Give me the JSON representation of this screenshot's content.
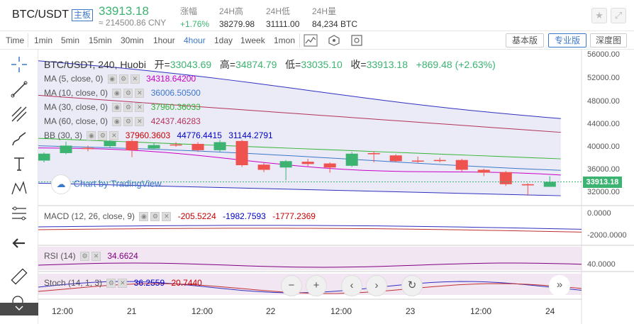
{
  "header": {
    "pair": "BTC/USDT",
    "board_tag": "主板",
    "price": "33913.18",
    "price_cny": "≈ 214500.86 CNY",
    "change_label": "涨幅",
    "change_value": "+1.76%",
    "high_label": "24H高",
    "high_value": "38279.98",
    "low_label": "24H低",
    "low_value": "31111.00",
    "volume_label": "24H量",
    "volume_value": "84,234 BTC"
  },
  "toolbar": {
    "timeframes": [
      "Time",
      "1min",
      "5min",
      "15min",
      "30min",
      "1hour",
      "4hour",
      "1day",
      "1week",
      "1mon"
    ],
    "active_timeframe": "4hour",
    "view_basic": "基本版",
    "view_pro": "专业版",
    "view_depth": "深度图"
  },
  "chart": {
    "symbol_line": "BTC/USDT, 240, Huobi",
    "open_label": "开=",
    "open": "33043.69",
    "high_label": "高=",
    "high": "34874.79",
    "low_label": "低=",
    "low": "33035.10",
    "close_label": "收=",
    "close": "33913.18",
    "change": "+869.48 (+2.63%)",
    "indicators": [
      {
        "label": "MA (5, close, 0)",
        "value": "34318.64200",
        "color": "#c800c8"
      },
      {
        "label": "MA (10, close, 0)",
        "value": "36006.50500",
        "color": "#3c78c8"
      },
      {
        "label": "MA (30, close, 0)",
        "value": "37960.36033",
        "color": "#32b432"
      },
      {
        "label": "MA (60, close, 0)",
        "value": "42437.46283",
        "color": "#b4325a"
      }
    ],
    "bb": {
      "label": "BB (30, 3)",
      "v1": "37960.3603",
      "v2": "44776.4415",
      "v3": "31144.2791"
    },
    "watermark": "Chart by TradingView",
    "price_axis": [
      "56000.00",
      "52000.00",
      "48000.00",
      "44000.00",
      "40000.00",
      "36000.00",
      "32000.00"
    ],
    "last_price": "33913.18",
    "macd": {
      "label": "MACD (12, 26, close, 9)",
      "v1": "-205.5224",
      "v2": "-1982.7593",
      "v3": "-1777.2369",
      "axis": [
        "0.0000",
        "-2000.0000"
      ]
    },
    "rsi": {
      "label": "RSI (14)",
      "value": "34.6624",
      "axis": "40.0000"
    },
    "stoch": {
      "label": "Stoch (14, 1, 3)",
      "v1": "36.2559",
      "v2": "20.7440"
    },
    "time_axis": [
      "12:00",
      "21",
      "12:00",
      "22",
      "12:00",
      "23",
      "12:00",
      "24"
    ]
  },
  "chart_data": {
    "type": "candlestick",
    "interval": "4hour",
    "candles": [
      {
        "open": 37600,
        "close": 38800,
        "high": 39000,
        "low": 37300
      },
      {
        "open": 38900,
        "close": 40200,
        "high": 40900,
        "low": 38700
      },
      {
        "open": 39800,
        "close": 39600,
        "high": 40200,
        "low": 39200
      },
      {
        "open": 40100,
        "close": 41000,
        "high": 41400,
        "low": 39800
      },
      {
        "open": 41000,
        "close": 39400,
        "high": 41300,
        "low": 38200
      },
      {
        "open": 39700,
        "close": 40300,
        "high": 40700,
        "low": 39500
      },
      {
        "open": 40400,
        "close": 40300,
        "high": 40800,
        "low": 40000
      },
      {
        "open": 40500,
        "close": 39400,
        "high": 40800,
        "low": 39100
      },
      {
        "open": 39400,
        "close": 40800,
        "high": 41200,
        "low": 39100
      },
      {
        "open": 41000,
        "close": 36800,
        "high": 41200,
        "low": 36500
      },
      {
        "open": 36900,
        "close": 36000,
        "high": 37300,
        "low": 35600
      },
      {
        "open": 36400,
        "close": 37500,
        "high": 37700,
        "low": 34200
      },
      {
        "open": 37400,
        "close": 37000,
        "high": 37900,
        "low": 36600
      },
      {
        "open": 37100,
        "close": 36400,
        "high": 37300,
        "low": 35500
      },
      {
        "open": 36700,
        "close": 38800,
        "high": 39100,
        "low": 36500
      },
      {
        "open": 38900,
        "close": 38700,
        "high": 39200,
        "low": 37300
      },
      {
        "open": 38500,
        "close": 37500,
        "high": 38700,
        "low": 37300
      },
      {
        "open": 37600,
        "close": 37500,
        "high": 38300,
        "low": 37200
      },
      {
        "open": 37700,
        "close": 37600,
        "high": 38100,
        "low": 37300
      },
      {
        "open": 37700,
        "close": 36000,
        "high": 37900,
        "low": 35700
      },
      {
        "open": 36000,
        "close": 35500,
        "high": 36200,
        "low": 34900
      },
      {
        "open": 35600,
        "close": 33500,
        "high": 35800,
        "low": 33200
      },
      {
        "open": 33500,
        "close": 33300,
        "high": 33700,
        "low": 31500
      },
      {
        "open": 33043.69,
        "close": 33913.18,
        "high": 34874.79,
        "low": 33035.1
      }
    ],
    "y_axis_ticks": [
      56000,
      52000,
      48000,
      44000,
      40000,
      36000,
      32000
    ],
    "colors": {
      "up": "#3cb371",
      "down": "#ef5350"
    }
  }
}
